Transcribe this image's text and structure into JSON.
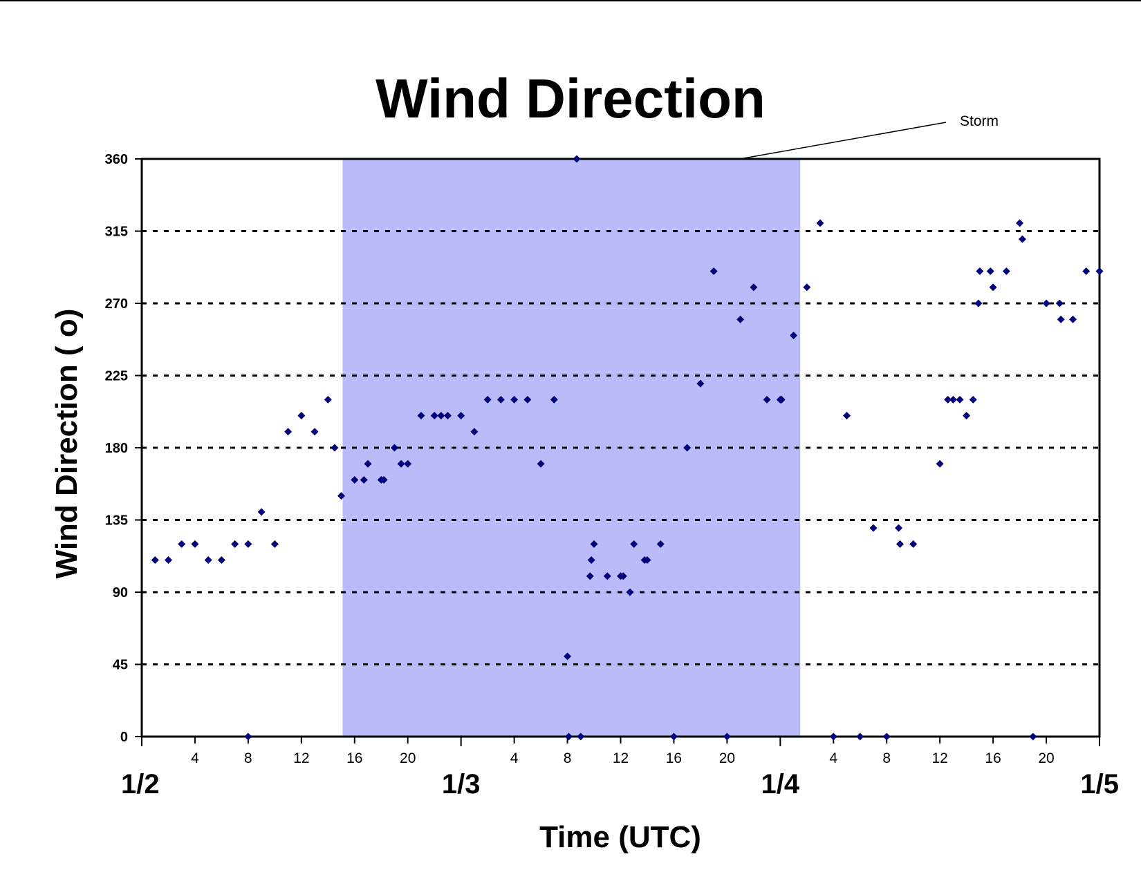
{
  "chart_data": {
    "type": "scatter",
    "title": "Wind Direction",
    "xlabel": "Time (UTC)",
    "ylabel": "Wind Direction ( o)",
    "ylim": [
      0,
      360
    ],
    "yticks": [
      0,
      45,
      90,
      135,
      180,
      225,
      270,
      315,
      360
    ],
    "xlim_hours": [
      0,
      72
    ],
    "hour_ticks": [
      "4",
      "8",
      "12",
      "16",
      "20",
      "4",
      "8",
      "12",
      "16",
      "20",
      "4",
      "8",
      "12",
      "16",
      "20"
    ],
    "date_labels": [
      "1/2",
      "1/3",
      "1/4",
      "1/5"
    ],
    "grid": "horizontal dotted",
    "marker_color": "#00007a",
    "shade_color": "#bbbbf9",
    "annotation": {
      "text": "Storm",
      "shaded_hours": [
        15.1,
        49.5
      ]
    },
    "series": [
      {
        "points": [
          [
            1,
            110
          ],
          [
            2,
            110
          ],
          [
            3,
            120
          ],
          [
            4,
            120
          ],
          [
            5,
            110
          ],
          [
            6,
            110
          ],
          [
            7,
            120
          ],
          [
            8,
            120
          ],
          [
            8,
            0
          ],
          [
            9,
            140
          ],
          [
            10,
            120
          ],
          [
            11,
            190
          ],
          [
            12,
            200
          ],
          [
            13,
            190
          ],
          [
            14,
            210
          ],
          [
            14.5,
            180
          ],
          [
            15,
            150
          ],
          [
            16,
            160
          ],
          [
            16.7,
            160
          ],
          [
            17,
            170
          ],
          [
            18,
            160
          ],
          [
            18.2,
            160
          ],
          [
            19,
            180
          ],
          [
            19.5,
            170
          ],
          [
            20,
            170
          ],
          [
            21,
            200
          ],
          [
            22,
            200
          ],
          [
            22.5,
            200
          ],
          [
            23,
            200
          ],
          [
            24,
            200
          ],
          [
            25,
            190
          ],
          [
            26,
            210
          ],
          [
            27,
            210
          ],
          [
            28,
            210
          ],
          [
            29,
            210
          ],
          [
            30,
            170
          ],
          [
            31,
            210
          ],
          [
            32,
            50
          ],
          [
            32.1,
            0
          ],
          [
            32.7,
            360
          ],
          [
            33,
            0
          ],
          [
            33.7,
            100
          ],
          [
            33.8,
            110
          ],
          [
            34,
            120
          ],
          [
            35,
            100
          ],
          [
            36,
            100
          ],
          [
            36.2,
            100
          ],
          [
            36.7,
            90
          ],
          [
            37,
            120
          ],
          [
            37.8,
            110
          ],
          [
            38,
            110
          ],
          [
            39,
            120
          ],
          [
            40,
            0
          ],
          [
            41,
            180
          ],
          [
            42,
            220
          ],
          [
            43,
            290
          ],
          [
            44,
            0
          ],
          [
            45,
            260
          ],
          [
            46,
            280
          ],
          [
            47,
            210
          ],
          [
            48,
            210
          ],
          [
            48.1,
            210
          ],
          [
            49,
            250
          ],
          [
            50,
            280
          ],
          [
            51,
            320
          ],
          [
            52,
            0
          ],
          [
            53,
            200
          ],
          [
            54,
            0
          ],
          [
            55,
            130
          ],
          [
            56,
            0
          ],
          [
            56.9,
            130
          ],
          [
            57,
            120
          ],
          [
            58,
            120
          ],
          [
            60,
            170
          ],
          [
            60.6,
            210
          ],
          [
            61,
            210
          ],
          [
            61.5,
            210
          ],
          [
            62,
            200
          ],
          [
            62.5,
            210
          ],
          [
            62.9,
            270
          ],
          [
            63,
            290
          ],
          [
            63.8,
            290
          ],
          [
            64,
            280
          ],
          [
            65,
            290
          ],
          [
            66,
            320
          ],
          [
            66.2,
            310
          ],
          [
            67,
            0
          ],
          [
            68,
            270
          ],
          [
            69,
            270
          ],
          [
            69.1,
            260
          ],
          [
            70,
            260
          ],
          [
            71,
            290
          ],
          [
            72,
            290
          ]
        ]
      }
    ]
  }
}
